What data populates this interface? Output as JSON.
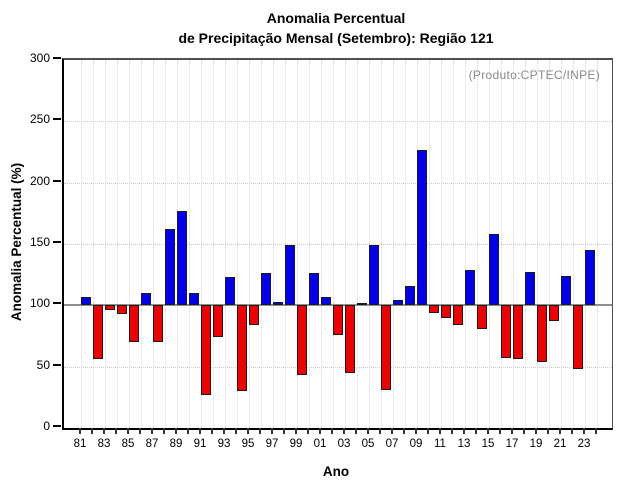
{
  "header": {
    "title_line1": "Anomalia Percentual",
    "title_line2": "de Precipitação Mensal (Setembro): Região 121"
  },
  "annotations": {
    "source": "(Produto:CPTEC/INPE)"
  },
  "chart_data": {
    "type": "bar",
    "title": "Anomalia Percentual de Precipitação Mensal (Setembro): Região 121",
    "xlabel": "Ano",
    "ylabel": "Anomalia Percentual (%)",
    "ylim": [
      0,
      300
    ],
    "yticks": [
      0,
      50,
      100,
      150,
      200,
      250,
      300
    ],
    "baseline": 100,
    "grid": "dotted",
    "legend_position": "none",
    "x_axis_tick_years": [
      1981,
      1982,
      1983,
      1984,
      1985,
      1986,
      1987,
      1988,
      1989,
      1990,
      1991,
      1992,
      1993,
      1994,
      1995,
      1996,
      1997,
      1998,
      1999,
      2000,
      2001,
      2002,
      2003,
      2004,
      2005,
      2006,
      2007,
      2008,
      2009,
      2010,
      2011,
      2012,
      2013,
      2014,
      2015,
      2016,
      2017,
      2018,
      2019,
      2020,
      2021,
      2022,
      2023,
      2024
    ],
    "xtick_labeled_years": [
      1981,
      1983,
      1985,
      1987,
      1989,
      1991,
      1993,
      1995,
      1997,
      1999,
      2001,
      2003,
      2005,
      2007,
      2009,
      2011,
      2013,
      2015,
      2017,
      2019,
      2021,
      2023
    ],
    "xtick_labels": [
      "81",
      "83",
      "85",
      "87",
      "89",
      "91",
      "93",
      "95",
      "97",
      "99",
      "01",
      "03",
      "05",
      "07",
      "09",
      "11",
      "13",
      "15",
      "17",
      "19",
      "21",
      "23"
    ],
    "years": [
      1981,
      1982,
      1983,
      1984,
      1985,
      1986,
      1987,
      1988,
      1989,
      1990,
      1991,
      1992,
      1993,
      1994,
      1995,
      1996,
      1997,
      1998,
      1999,
      2000,
      2001,
      2002,
      2003,
      2004,
      2005,
      2006,
      2007,
      2008,
      2009,
      2010,
      2011,
      2012,
      2013,
      2014,
      2015,
      2016,
      2017,
      2018,
      2019,
      2020,
      2021,
      2022,
      2023
    ],
    "values": [
      107,
      56,
      96,
      93,
      70,
      110,
      70,
      162,
      177,
      110,
      27,
      74,
      123,
      30,
      84,
      126,
      103,
      149,
      43,
      126,
      107,
      76,
      45,
      102,
      149,
      31,
      104,
      116,
      227,
      94,
      90,
      84,
      129,
      81,
      158,
      57,
      56,
      127,
      54,
      87,
      124,
      48,
      145
    ],
    "colors": {
      "above_baseline": "#0000ee",
      "below_baseline": "#ee0000",
      "bar_outline": "#1b1b1b",
      "baseline_line": "#8f8f8f",
      "gridline": "#c9c9c9",
      "source_text": "#8a8a8a"
    }
  }
}
